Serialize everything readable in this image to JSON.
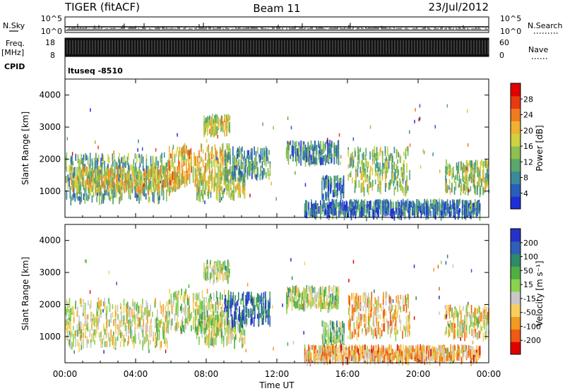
{
  "header": {
    "title": "TIGER (fitACF)",
    "beam": "Beam 11",
    "date": "23/Jul/2012"
  },
  "top_panels": {
    "nsky_label": "N.Sky",
    "nsky_ticks": [
      "10^5",
      "10^0"
    ],
    "nsearch_label": "N.Search",
    "freq_label": "Freq.",
    "freq_unit": "[MHz]",
    "freq_ticks": [
      "18",
      "8"
    ],
    "nave_label": "Nave",
    "nave_ticks": [
      "60",
      "0"
    ],
    "cpid_label": "CPID",
    "cpid_value": "ltuseq -8510"
  },
  "colors": {
    "power": [
      "#1f2fd6",
      "#2a5fb8",
      "#3b8a9a",
      "#5aa86a",
      "#8cc050",
      "#d0d040",
      "#f0b030",
      "#f07a20",
      "#e83a10",
      "#e00000"
    ],
    "velocity": [
      "#e00000",
      "#ef5a14",
      "#f39a22",
      "#f5cf60",
      "#c8c8c8",
      "#8ad24e",
      "#4fae44",
      "#2f8a6a",
      "#2f5fb8",
      "#2333c8"
    ]
  },
  "chart_data": [
    {
      "type": "heatmap",
      "name": "power",
      "ylabel": "Slant Range [km]",
      "xlim": [
        "00:00",
        "24:00"
      ],
      "ylim": [
        180,
        4500
      ],
      "yticks": [
        "1000",
        "2000",
        "3000",
        "4000"
      ],
      "colorbar": {
        "label": "Power [dB]",
        "ticks": [
          "4",
          "8",
          "12",
          "16",
          "20",
          "24",
          "28"
        ],
        "range": [
          0,
          30
        ]
      },
      "echo_regions": [
        {
          "t0": 0.0,
          "t1": 5.8,
          "r0": 700,
          "r1": 2100,
          "level": 0.35
        },
        {
          "t0": 0.3,
          "t1": 6.5,
          "r0": 1000,
          "r1": 1700,
          "level": 0.55
        },
        {
          "t0": 5.8,
          "t1": 9.3,
          "r0": 1200,
          "r1": 2400,
          "level": 0.6
        },
        {
          "t0": 7.4,
          "t1": 10.2,
          "r0": 800,
          "r1": 1600,
          "level": 0.5
        },
        {
          "t0": 7.8,
          "t1": 9.3,
          "r0": 2800,
          "r1": 3300,
          "level": 0.5
        },
        {
          "t0": 9.0,
          "t1": 11.6,
          "r0": 1400,
          "r1": 2300,
          "level": 0.3
        },
        {
          "t0": 12.5,
          "t1": 15.5,
          "r0": 1900,
          "r1": 2500,
          "level": 0.25
        },
        {
          "t0": 14.5,
          "t1": 15.8,
          "r0": 800,
          "r1": 1400,
          "level": 0.2
        },
        {
          "t0": 16.0,
          "t1": 19.5,
          "r0": 1000,
          "r1": 2300,
          "level": 0.45
        },
        {
          "t0": 21.5,
          "t1": 24.0,
          "r0": 1000,
          "r1": 1900,
          "level": 0.45
        },
        {
          "t0": 13.5,
          "t1": 23.5,
          "r0": 250,
          "r1": 650,
          "level": 0.2
        }
      ]
    },
    {
      "type": "heatmap",
      "name": "velocity",
      "ylabel": "Slant Range [km]",
      "xlabel": "Time UT",
      "xticks": [
        "00:00",
        "04:00",
        "08:00",
        "12:00",
        "16:00",
        "20:00",
        "00:00"
      ],
      "xlim": [
        "00:00",
        "24:00"
      ],
      "ylim": [
        180,
        4500
      ],
      "yticks": [
        "1000",
        "2000",
        "3000",
        "4000"
      ],
      "colorbar": {
        "label": "Velocity [m s⁻¹]",
        "ticks": [
          "200",
          "100",
          "50",
          "15",
          "-15",
          "-50",
          "-100",
          "-200"
        ],
        "range": [
          -250,
          250
        ]
      },
      "echo_regions": [
        {
          "t0": 0.0,
          "t1": 5.8,
          "r0": 700,
          "r1": 2100,
          "level": 0.45
        },
        {
          "t0": 5.8,
          "t1": 9.3,
          "r0": 1200,
          "r1": 2400,
          "level": 0.5
        },
        {
          "t0": 7.4,
          "t1": 10.2,
          "r0": 800,
          "r1": 1600,
          "level": 0.5
        },
        {
          "t0": 7.8,
          "t1": 9.3,
          "r0": 2800,
          "r1": 3300,
          "level": 0.5
        },
        {
          "t0": 9.0,
          "t1": 11.6,
          "r0": 1400,
          "r1": 2300,
          "level": 0.85
        },
        {
          "t0": 12.5,
          "t1": 15.5,
          "r0": 1900,
          "r1": 2500,
          "level": 0.5
        },
        {
          "t0": 14.5,
          "t1": 15.8,
          "r0": 800,
          "r1": 1400,
          "level": 0.6
        },
        {
          "t0": 16.0,
          "t1": 19.5,
          "r0": 1000,
          "r1": 2300,
          "level": 0.35
        },
        {
          "t0": 21.5,
          "t1": 24.0,
          "r0": 1000,
          "r1": 1900,
          "level": 0.4
        },
        {
          "t0": 13.5,
          "t1": 23.5,
          "r0": 250,
          "r1": 650,
          "level": 0.3
        }
      ]
    }
  ]
}
